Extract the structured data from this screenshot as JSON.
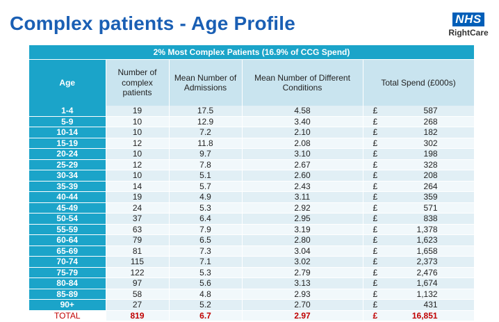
{
  "header": {
    "title": "Complex patients - Age Profile",
    "logo_nhs": "NHS",
    "logo_sub": "RightCare"
  },
  "table": {
    "banner": "2% Most Complex Patients (16.9% of CCG Spend)",
    "columns": [
      "Age",
      "Number of complex patients",
      "Mean Number of Admissions",
      "Mean Number of Different Conditions",
      "Total Spend (£000s)"
    ],
    "currency_symbol": "£",
    "rows": [
      {
        "age": "1-4",
        "patients": "19",
        "admissions": "17.5",
        "conditions": "4.58",
        "spend": "587"
      },
      {
        "age": "5-9",
        "patients": "10",
        "admissions": "12.9",
        "conditions": "3.40",
        "spend": "268"
      },
      {
        "age": "10-14",
        "patients": "10",
        "admissions": "7.2",
        "conditions": "2.10",
        "spend": "182"
      },
      {
        "age": "15-19",
        "patients": "12",
        "admissions": "11.8",
        "conditions": "2.08",
        "spend": "302"
      },
      {
        "age": "20-24",
        "patients": "10",
        "admissions": "9.7",
        "conditions": "3.10",
        "spend": "198"
      },
      {
        "age": "25-29",
        "patients": "12",
        "admissions": "7.8",
        "conditions": "2.67",
        "spend": "328"
      },
      {
        "age": "30-34",
        "patients": "10",
        "admissions": "5.1",
        "conditions": "2.60",
        "spend": "208"
      },
      {
        "age": "35-39",
        "patients": "14",
        "admissions": "5.7",
        "conditions": "2.43",
        "spend": "264"
      },
      {
        "age": "40-44",
        "patients": "19",
        "admissions": "4.9",
        "conditions": "3.11",
        "spend": "359"
      },
      {
        "age": "45-49",
        "patients": "24",
        "admissions": "5.3",
        "conditions": "2.92",
        "spend": "571"
      },
      {
        "age": "50-54",
        "patients": "37",
        "admissions": "6.4",
        "conditions": "2.95",
        "spend": "838"
      },
      {
        "age": "55-59",
        "patients": "63",
        "admissions": "7.9",
        "conditions": "3.19",
        "spend": "1,378"
      },
      {
        "age": "60-64",
        "patients": "79",
        "admissions": "6.5",
        "conditions": "2.80",
        "spend": "1,623"
      },
      {
        "age": "65-69",
        "patients": "81",
        "admissions": "7.3",
        "conditions": "3.04",
        "spend": "1,658"
      },
      {
        "age": "70-74",
        "patients": "115",
        "admissions": "7.1",
        "conditions": "3.02",
        "spend": "2,373"
      },
      {
        "age": "75-79",
        "patients": "122",
        "admissions": "5.3",
        "conditions": "2.79",
        "spend": "2,476"
      },
      {
        "age": "80-84",
        "patients": "97",
        "admissions": "5.6",
        "conditions": "3.13",
        "spend": "1,674"
      },
      {
        "age": "85-89",
        "patients": "58",
        "admissions": "4.8",
        "conditions": "2.93",
        "spend": "1,132"
      },
      {
        "age": "90+",
        "patients": "27",
        "admissions": "5.2",
        "conditions": "2.70",
        "spend": "431"
      }
    ],
    "total": {
      "age": "TOTAL",
      "patients": "819",
      "admissions": "6.7",
      "conditions": "2.97",
      "spend": "16,851"
    }
  }
}
